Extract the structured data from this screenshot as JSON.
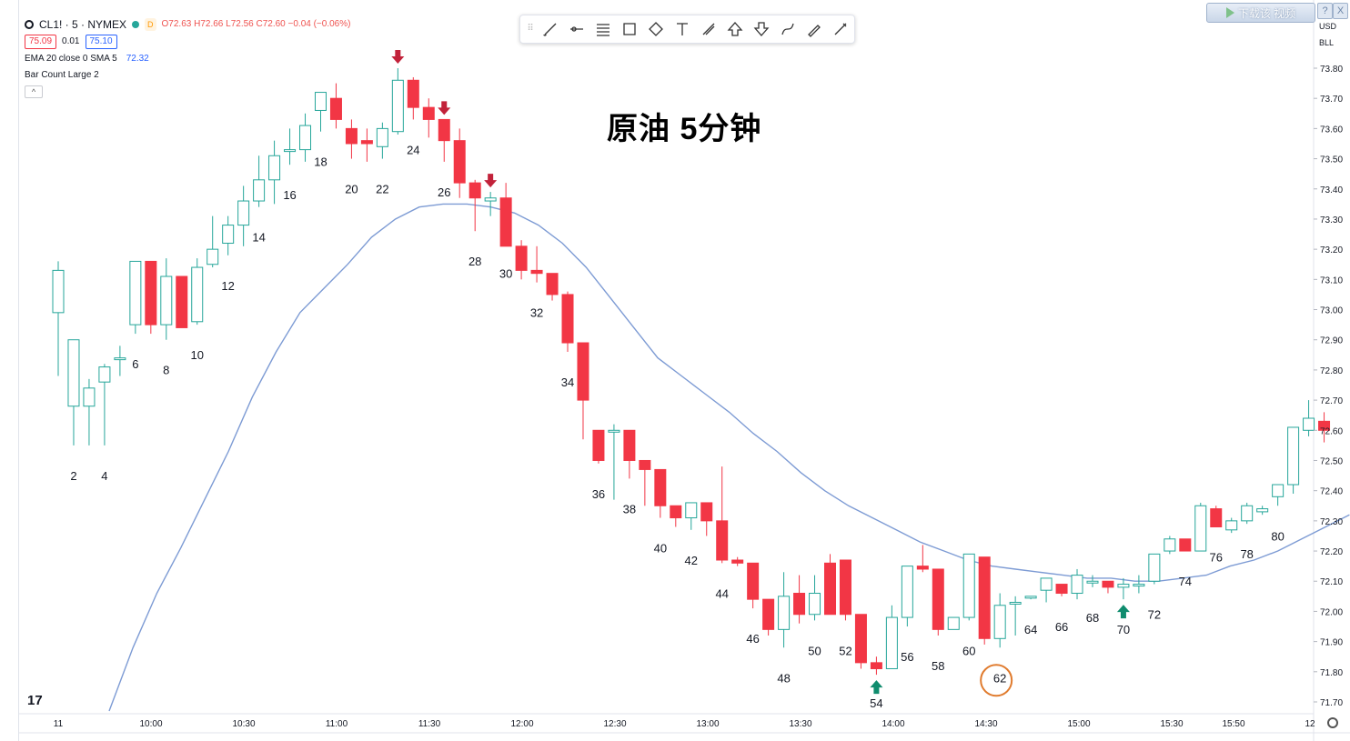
{
  "legend": {
    "symbol": "CL1! · 5 · NYMEX",
    "d_badge": "D",
    "ohlc": "O72.63 H72.66 L72.56 C72.60 −0.04 (−0.06%)",
    "bid": "75.09",
    "spread": "0.01",
    "ask": "75.10",
    "ema_label": "EMA 20 close 0 SMA 5",
    "ema_value": "72.32",
    "bar_count_label": "Bar Count Large 2",
    "collapse_glyph": "^"
  },
  "toolbar": {
    "tools": [
      "trend-line-icon",
      "horizontal-ray-icon",
      "parallel-channel-icon",
      "rectangle-icon",
      "path-icon",
      "text-icon",
      "measure-icon",
      "arrow-up-icon",
      "arrow-down-icon",
      "curve-icon",
      "brush-icon",
      "pen-icon"
    ]
  },
  "overlay": {
    "download_label": "下载该 视频",
    "help_glyph": "?",
    "close_glyph": "X"
  },
  "axis_units": [
    "USD",
    "BLL"
  ],
  "title": "原油  5分钟",
  "logo_text": "17",
  "colors": {
    "up": "#26a69a",
    "down": "#f23645",
    "ema": "#7d9bd4",
    "arrow_down": "#c2223a",
    "arrow_up": "#0f8c6e",
    "marker": "#e07b2e"
  },
  "chart_data": {
    "type": "candlestick",
    "x_axis": {
      "ticks": [
        "11",
        "10:00",
        "10:30",
        "11:00",
        "11:30",
        "12:00",
        "12:30",
        "13:00",
        "13:30",
        "14:00",
        "14:30",
        "15:00",
        "15:30",
        "15:50",
        "12"
      ]
    },
    "y_axis": {
      "ylim": [
        71.68,
        73.88
      ],
      "ticks": [
        "73.80",
        "73.70",
        "73.60",
        "73.50",
        "73.40",
        "73.30",
        "73.20",
        "73.10",
        "73.00",
        "72.90",
        "72.80",
        "72.70",
        "72.60",
        "72.50",
        "72.40",
        "72.30",
        "72.20",
        "72.10",
        "72.00",
        "71.90",
        "71.80",
        "71.70"
      ]
    },
    "ohlc": [
      [
        72.99,
        73.16,
        72.78,
        73.13
      ],
      [
        72.68,
        72.9,
        72.55,
        72.9
      ],
      [
        72.68,
        72.77,
        72.55,
        72.74
      ],
      [
        72.76,
        72.82,
        72.55,
        72.81
      ],
      [
        72.84,
        72.88,
        72.78,
        72.84
      ],
      [
        72.95,
        73.16,
        72.92,
        73.16
      ],
      [
        73.16,
        73.16,
        72.92,
        72.95
      ],
      [
        72.95,
        73.17,
        72.9,
        73.11
      ],
      [
        73.11,
        73.11,
        72.95,
        72.94
      ],
      [
        72.96,
        73.17,
        72.95,
        73.14
      ],
      [
        73.15,
        73.31,
        73.14,
        73.2
      ],
      [
        73.22,
        73.31,
        73.18,
        73.28
      ],
      [
        73.28,
        73.41,
        73.21,
        73.36
      ],
      [
        73.36,
        73.51,
        73.34,
        73.43
      ],
      [
        73.43,
        73.56,
        73.35,
        73.51
      ],
      [
        73.53,
        73.6,
        73.48,
        73.53
      ],
      [
        73.53,
        73.65,
        73.49,
        73.61
      ],
      [
        73.66,
        73.72,
        73.59,
        73.72
      ],
      [
        73.7,
        73.75,
        73.6,
        73.63
      ],
      [
        73.6,
        73.63,
        73.5,
        73.55
      ],
      [
        73.56,
        73.6,
        73.49,
        73.55
      ],
      [
        73.54,
        73.62,
        73.5,
        73.6
      ],
      [
        73.59,
        73.8,
        73.58,
        73.76
      ],
      [
        73.76,
        73.77,
        73.63,
        73.67
      ],
      [
        73.67,
        73.7,
        73.57,
        73.63
      ],
      [
        73.63,
        73.63,
        73.49,
        73.56
      ],
      [
        73.56,
        73.6,
        73.37,
        73.42
      ],
      [
        73.42,
        73.43,
        73.26,
        73.37
      ],
      [
        73.36,
        73.39,
        73.31,
        73.37
      ],
      [
        73.37,
        73.42,
        73.22,
        73.21
      ],
      [
        73.21,
        73.23,
        73.1,
        73.13
      ],
      [
        73.13,
        73.21,
        73.09,
        73.12
      ],
      [
        73.12,
        73.12,
        73.03,
        73.05
      ],
      [
        73.05,
        73.06,
        72.86,
        72.89
      ],
      [
        72.89,
        72.89,
        72.57,
        72.7
      ],
      [
        72.6,
        72.6,
        72.49,
        72.5
      ],
      [
        72.6,
        72.62,
        72.37,
        72.6
      ],
      [
        72.6,
        72.6,
        72.44,
        72.5
      ],
      [
        72.5,
        72.5,
        72.35,
        72.47
      ],
      [
        72.47,
        72.47,
        72.31,
        72.35
      ],
      [
        72.35,
        72.35,
        72.28,
        72.31
      ],
      [
        72.31,
        72.36,
        72.27,
        72.36
      ],
      [
        72.36,
        72.36,
        72.25,
        72.3
      ],
      [
        72.3,
        72.48,
        72.16,
        72.17
      ],
      [
        72.17,
        72.18,
        72.15,
        72.16
      ],
      [
        72.16,
        72.16,
        72.01,
        72.04
      ],
      [
        72.04,
        72.04,
        71.92,
        71.94
      ],
      [
        71.94,
        72.13,
        71.88,
        72.05
      ],
      [
        72.06,
        72.12,
        71.96,
        71.99
      ],
      [
        71.99,
        72.12,
        71.97,
        72.06
      ],
      [
        72.16,
        72.19,
        71.99,
        71.99
      ],
      [
        72.17,
        72.17,
        71.97,
        71.99
      ],
      [
        71.99,
        71.99,
        71.81,
        71.83
      ],
      [
        71.83,
        71.85,
        71.79,
        71.81
      ],
      [
        71.81,
        72.02,
        71.81,
        71.98
      ],
      [
        71.98,
        72.15,
        71.95,
        72.15
      ],
      [
        72.15,
        72.22,
        72.13,
        72.14
      ],
      [
        72.14,
        72.14,
        71.92,
        71.94
      ],
      [
        71.94,
        71.98,
        71.94,
        71.98
      ],
      [
        71.98,
        72.17,
        71.97,
        72.19
      ],
      [
        72.18,
        72.18,
        71.89,
        71.91
      ],
      [
        71.91,
        72.06,
        71.88,
        72.02
      ],
      [
        72.03,
        72.05,
        71.92,
        72.03
      ],
      [
        72.05,
        72.05,
        72.04,
        72.05
      ],
      [
        72.07,
        72.11,
        72.03,
        72.11
      ],
      [
        72.09,
        72.09,
        72.05,
        72.06
      ],
      [
        72.06,
        72.14,
        72.04,
        72.12
      ],
      [
        72.1,
        72.12,
        72.08,
        72.1
      ],
      [
        72.1,
        72.1,
        72.06,
        72.08
      ],
      [
        72.08,
        72.11,
        72.04,
        72.09
      ],
      [
        72.09,
        72.12,
        72.06,
        72.09
      ],
      [
        72.1,
        72.19,
        72.09,
        72.19
      ],
      [
        72.2,
        72.25,
        72.19,
        72.24
      ],
      [
        72.24,
        72.24,
        72.2,
        72.2
      ],
      [
        72.2,
        72.36,
        72.2,
        72.35
      ],
      [
        72.34,
        72.35,
        72.28,
        72.28
      ],
      [
        72.27,
        72.31,
        72.26,
        72.3
      ],
      [
        72.3,
        72.36,
        72.29,
        72.35
      ],
      [
        72.33,
        72.35,
        72.32,
        72.34
      ],
      [
        72.38,
        72.42,
        72.35,
        72.42
      ],
      [
        72.42,
        72.6,
        72.39,
        72.61
      ],
      [
        72.6,
        72.7,
        72.58,
        72.64
      ],
      [
        72.63,
        72.66,
        72.56,
        72.6
      ]
    ],
    "ema": [
      71.67,
      71.88,
      72.06,
      72.21,
      72.37,
      72.53,
      72.71,
      72.86,
      72.99,
      73.07,
      73.15,
      73.24,
      73.3,
      73.34,
      73.35,
      73.35,
      73.34,
      73.32,
      73.28,
      73.22,
      73.14,
      73.04,
      72.94,
      72.84,
      72.78,
      72.72,
      72.66,
      72.59,
      72.53,
      72.46,
      72.4,
      72.35,
      72.31,
      72.27,
      72.23,
      72.2,
      72.17,
      72.15,
      72.14,
      72.13,
      72.12,
      72.11,
      72.11,
      72.1,
      72.1,
      72.11,
      72.12,
      72.15,
      72.17,
      72.2,
      72.24,
      72.28,
      72.32
    ],
    "ema_x_start": 3.3,
    "ema_x_step": 1.545,
    "bar_count_labels": [
      "2",
      "4",
      "6",
      "8",
      "10",
      "12",
      "14",
      "16",
      "18",
      "20",
      "22",
      "24",
      "26",
      "28",
      "30",
      "32",
      "34",
      "36",
      "38",
      "40",
      "42",
      "44",
      "46",
      "48",
      "50",
      "52",
      "54",
      "56",
      "58",
      "60",
      "62",
      "64",
      "66",
      "68",
      "70",
      "72",
      "74",
      "76",
      "78",
      "80"
    ],
    "down_arrows_bars": [
      22,
      25,
      28
    ],
    "up_arrows_bars": [
      53,
      69
    ],
    "circle_marker_bar": 61
  }
}
